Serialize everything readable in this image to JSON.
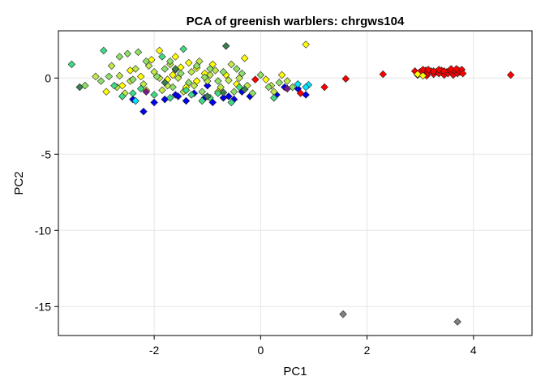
{
  "chart_data": {
    "type": "scatter",
    "title": "PCA of greenish warblers: chrgws104",
    "xlabel": "PC1",
    "ylabel": "PC2",
    "xlim": [
      -3.8,
      5.1
    ],
    "ylim": [
      -16.9,
      3.1
    ],
    "xticks": [
      -2,
      0,
      2,
      4
    ],
    "xtick_labels": [
      "-2",
      "0",
      "2",
      "4"
    ],
    "yticks": [
      0,
      -5,
      -10,
      -15
    ],
    "ytick_labels": [
      "0",
      "-5",
      "-10",
      "-15"
    ],
    "grid": true,
    "legend": "none",
    "marker": "diamond",
    "colors": {
      "red": "#ff0000",
      "blue": "#0000ee",
      "yellow": "#ffff00",
      "yellowgreen": "#bfe84a",
      "lightgreen": "#8fe06a",
      "aquagreen": "#3ddc84",
      "cyan": "#00e5ff",
      "darkgreen": "#3a7d50",
      "purple": "#7a1a8a",
      "gray": "#808080"
    },
    "series": [
      {
        "color": "red",
        "points": [
          [
            -0.1,
            -0.1
          ],
          [
            0.75,
            -1.0
          ],
          [
            1.2,
            -0.6
          ],
          [
            1.6,
            -0.05
          ],
          [
            2.3,
            0.25
          ],
          [
            4.7,
            0.2
          ],
          [
            2.9,
            0.45
          ],
          [
            2.95,
            0.2
          ],
          [
            3.0,
            0.4
          ],
          [
            3.05,
            0.3
          ],
          [
            3.1,
            0.5
          ],
          [
            3.12,
            0.15
          ],
          [
            3.15,
            0.35
          ],
          [
            3.2,
            0.45
          ],
          [
            3.25,
            0.25
          ],
          [
            3.3,
            0.4
          ],
          [
            3.35,
            0.3
          ],
          [
            3.4,
            0.5
          ],
          [
            3.45,
            0.2
          ],
          [
            3.5,
            0.4
          ],
          [
            3.52,
            0.3
          ],
          [
            3.55,
            0.5
          ],
          [
            3.6,
            0.35
          ],
          [
            3.62,
            0.2
          ],
          [
            3.65,
            0.45
          ],
          [
            3.7,
            0.3
          ],
          [
            3.72,
            0.5
          ],
          [
            3.75,
            0.4
          ],
          [
            3.78,
            0.55
          ],
          [
            3.8,
            0.3
          ],
          [
            3.35,
            0.55
          ],
          [
            3.05,
            0.55
          ],
          [
            3.45,
            0.45
          ],
          [
            3.58,
            0.6
          ],
          [
            3.68,
            0.6
          ],
          [
            3.25,
            0.45
          ],
          [
            2.98,
            0.35
          ],
          [
            3.15,
            0.55
          ]
        ]
      },
      {
        "color": "blue",
        "points": [
          [
            -2.4,
            -1.4
          ],
          [
            -2.2,
            -2.2
          ],
          [
            -2.0,
            -1.6
          ],
          [
            -1.8,
            -1.4
          ],
          [
            -1.6,
            -1.1
          ],
          [
            -1.4,
            -1.5
          ],
          [
            -1.25,
            -1.0
          ],
          [
            -1.05,
            -1.3
          ],
          [
            -0.9,
            -1.6
          ],
          [
            -0.7,
            -1.3
          ],
          [
            -0.6,
            -1.2
          ],
          [
            -0.5,
            -1.4
          ],
          [
            -0.35,
            -0.9
          ],
          [
            -0.2,
            -1.2
          ],
          [
            0.3,
            -1.1
          ],
          [
            0.45,
            -0.6
          ],
          [
            0.85,
            -1.1
          ],
          [
            0.7,
            -0.7
          ],
          [
            -1.55,
            -1.2
          ],
          [
            -1.0,
            -0.5
          ]
        ]
      },
      {
        "color": "yellow",
        "points": [
          [
            -2.9,
            -0.9
          ],
          [
            -2.6,
            -0.5
          ],
          [
            -2.45,
            0.5
          ],
          [
            -2.25,
            0.1
          ],
          [
            -2.05,
            1.2
          ],
          [
            -1.9,
            1.8
          ],
          [
            -1.75,
            -0.1
          ],
          [
            -1.6,
            1.4
          ],
          [
            -1.5,
            0.7
          ],
          [
            -1.35,
            1.0
          ],
          [
            -1.2,
            -0.2
          ],
          [
            -1.05,
            0.3
          ],
          [
            -0.9,
            0.9
          ],
          [
            -0.8,
            -0.9
          ],
          [
            -0.65,
            0.2
          ],
          [
            -0.45,
            -0.4
          ],
          [
            -0.3,
            1.3
          ],
          [
            0.1,
            -0.1
          ],
          [
            0.4,
            0.2
          ],
          [
            0.85,
            2.2
          ],
          [
            2.95,
            0.25
          ],
          [
            3.05,
            0.15
          ],
          [
            -1.65,
            0.2
          ],
          [
            -2.15,
            -0.8
          ],
          [
            -1.4,
            -0.6
          ],
          [
            -1.2,
            0.65
          ]
        ]
      },
      {
        "color": "yellowgreen",
        "points": [
          [
            -3.1,
            0.1
          ],
          [
            -2.8,
            0.8
          ],
          [
            -2.7,
            -0.6
          ],
          [
            -2.55,
            -1.0
          ],
          [
            -2.35,
            0.6
          ],
          [
            -2.2,
            -0.4
          ],
          [
            -2.0,
            0.4
          ],
          [
            -1.85,
            -0.8
          ],
          [
            -1.7,
            0.9
          ],
          [
            -1.55,
            0.0
          ],
          [
            -1.45,
            -0.9
          ],
          [
            -1.3,
            0.4
          ],
          [
            -1.15,
            1.1
          ],
          [
            -1.0,
            -0.2
          ],
          [
            -0.85,
            0.5
          ],
          [
            -0.75,
            -0.6
          ],
          [
            -0.55,
            0.9
          ],
          [
            -0.4,
            0.0
          ],
          [
            -0.25,
            -0.5
          ],
          [
            0.2,
            -0.5
          ],
          [
            0.25,
            -0.9
          ],
          [
            0.5,
            -0.2
          ],
          [
            -1.9,
            0.0
          ],
          [
            -2.45,
            -0.2
          ],
          [
            -1.25,
            -0.5
          ],
          [
            -1.6,
            0.55
          ],
          [
            -0.95,
            0.2
          ],
          [
            -2.1,
            0.8
          ],
          [
            -2.65,
            0.15
          ],
          [
            -1.75,
            -0.5
          ],
          [
            -0.6,
            -0.15
          ]
        ]
      },
      {
        "color": "lightgreen",
        "points": [
          [
            -3.3,
            -0.5
          ],
          [
            -3.0,
            -0.2
          ],
          [
            -2.85,
            0.1
          ],
          [
            -2.65,
            1.4
          ],
          [
            -2.5,
            1.6
          ],
          [
            -2.3,
            1.7
          ],
          [
            -2.15,
            1.1
          ],
          [
            -1.95,
            0.1
          ],
          [
            -1.8,
            0.6
          ],
          [
            -1.65,
            -0.6
          ],
          [
            -1.5,
            0.3
          ],
          [
            -1.35,
            -0.3
          ],
          [
            -1.2,
            0.8
          ],
          [
            -1.1,
            -0.9
          ],
          [
            -0.95,
            0.6
          ],
          [
            -0.8,
            -0.2
          ],
          [
            -0.7,
            0.4
          ],
          [
            -0.5,
            -0.9
          ],
          [
            -0.35,
            0.3
          ],
          [
            -0.15,
            -1.0
          ],
          [
            0.0,
            0.2
          ],
          [
            0.15,
            -0.6
          ],
          [
            0.35,
            -0.3
          ],
          [
            0.6,
            -0.6
          ],
          [
            -2.4,
            -0.1
          ],
          [
            -1.05,
            0.05
          ],
          [
            -1.7,
            1.1
          ],
          [
            -0.45,
            0.6
          ]
        ]
      },
      {
        "color": "aquagreen",
        "points": [
          [
            -3.55,
            0.9
          ],
          [
            -2.95,
            1.8
          ],
          [
            -2.6,
            -1.2
          ],
          [
            -2.4,
            -1.0
          ],
          [
            -2.0,
            -1.1
          ],
          [
            -1.85,
            1.4
          ],
          [
            -1.7,
            -1.3
          ],
          [
            -1.45,
            1.9
          ],
          [
            -1.3,
            -1.1
          ],
          [
            -1.1,
            -1.5
          ],
          [
            -0.95,
            -1.3
          ],
          [
            -0.8,
            -1.0
          ],
          [
            -0.55,
            -1.6
          ],
          [
            -0.4,
            -0.6
          ],
          [
            0.25,
            -1.3
          ],
          [
            -2.75,
            -0.5
          ],
          [
            -1.4,
            -0.8
          ],
          [
            -2.25,
            -0.7
          ]
        ]
      },
      {
        "color": "cyan",
        "points": [
          [
            -2.35,
            -1.5
          ],
          [
            0.7,
            -0.4
          ],
          [
            0.9,
            -0.45
          ],
          [
            0.85,
            -0.6
          ]
        ]
      },
      {
        "color": "darkgreen",
        "points": [
          [
            -3.4,
            -0.6
          ],
          [
            -0.65,
            2.1
          ],
          [
            -1.8,
            -0.3
          ],
          [
            -0.3,
            -0.75
          ],
          [
            -0.7,
            -0.95
          ],
          [
            -1.6,
            0.6
          ],
          [
            -1.0,
            -1.2
          ]
        ]
      },
      {
        "color": "purple",
        "points": [
          [
            0.5,
            -0.7
          ],
          [
            -2.15,
            -0.9
          ]
        ]
      },
      {
        "color": "gray",
        "points": [
          [
            1.55,
            -15.5
          ],
          [
            3.7,
            -16.0
          ]
        ]
      }
    ]
  }
}
